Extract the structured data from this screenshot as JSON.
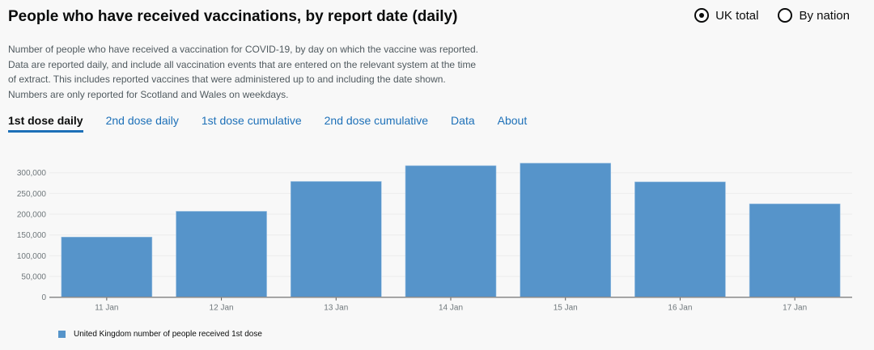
{
  "header": {
    "title": "People who have received vaccinations, by report date (daily)"
  },
  "radios": [
    {
      "label": "UK total",
      "selected": true
    },
    {
      "label": "By nation",
      "selected": false
    }
  ],
  "description": [
    "Number of people who have received a vaccination for COVID-19, by day on which the vaccine was reported.",
    "Data are reported daily, and include all vaccination events that are entered on the relevant system at the time",
    "of extract. This includes reported vaccines that were administered up to and including the date shown.",
    "Numbers are only reported for Scotland and Wales on weekdays."
  ],
  "tabs": [
    {
      "label": "1st dose daily",
      "active": true
    },
    {
      "label": "2nd dose daily"
    },
    {
      "label": "1st dose cumulative"
    },
    {
      "label": "2nd dose cumulative"
    },
    {
      "label": "Data"
    },
    {
      "label": "About"
    }
  ],
  "chart_data": {
    "type": "bar",
    "categories": [
      "11 Jan",
      "12 Jan",
      "13 Jan",
      "14 Jan",
      "15 Jan",
      "16 Jan",
      "17 Jan"
    ],
    "series": [
      {
        "name": "United Kingdom number of people received 1st dose",
        "values": [
          145000,
          207000,
          279000,
          317000,
          323000,
          278000,
          225000
        ],
        "color": "#5694ca"
      }
    ],
    "yticks": [
      "0",
      "50,000",
      "100,000",
      "150,000",
      "200,000",
      "250,000",
      "300,000"
    ],
    "ylim": [
      0,
      300000
    ],
    "grid": true,
    "legend": "bottom-left"
  }
}
